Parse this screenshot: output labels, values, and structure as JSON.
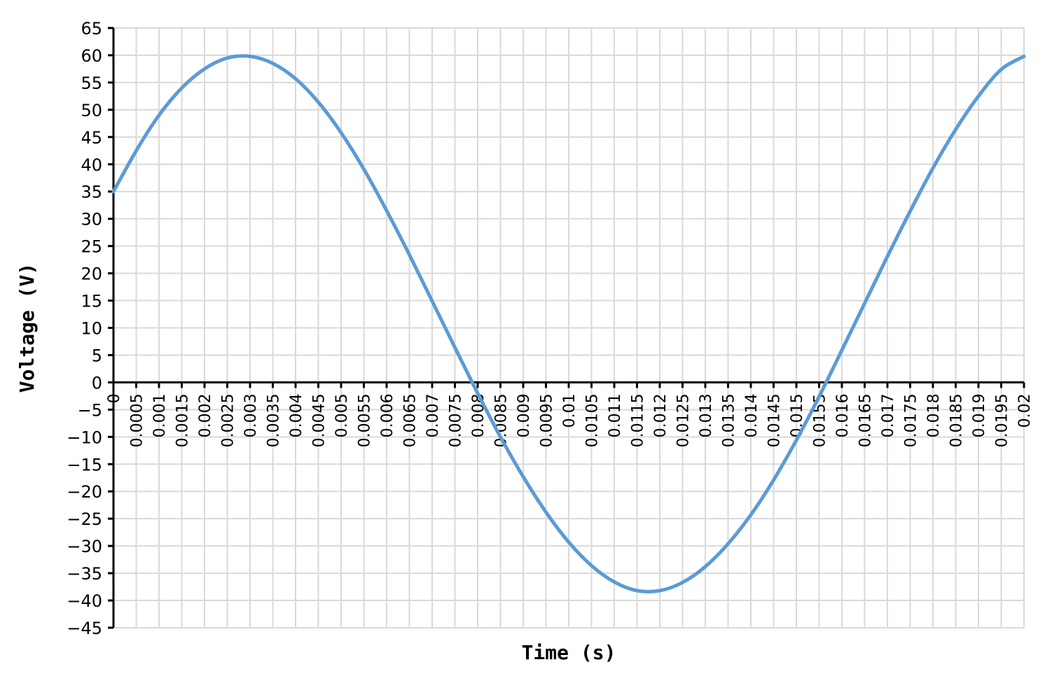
{
  "chart_data": {
    "type": "line",
    "xlabel": "Time (s)",
    "ylabel": "Voltage (V)",
    "xlim": [
      0,
      0.02
    ],
    "ylim": [
      -45,
      65
    ],
    "grid": true,
    "x_ticks": [
      "0",
      "0.0005",
      "0.001",
      "0.0015",
      "0.002",
      "0.0025",
      "0.003",
      "0.0035",
      "0.004",
      "0.0045",
      "0.005",
      "0.0055",
      "0.006",
      "0.0065",
      "0.007",
      "0.0075",
      "0.008",
      "0.0085",
      "0.009",
      "0.0095",
      "0.01",
      "0.0105",
      "0.011",
      "0.0115",
      "0.012",
      "0.0125",
      "0.013",
      "0.0135",
      "0.014",
      "0.0145",
      "0.015",
      "0.0155",
      "0.016",
      "0.0165",
      "0.017",
      "0.0175",
      "0.018",
      "0.0185",
      "0.019",
      "0.0195",
      "0.02"
    ],
    "y_ticks": [
      "65",
      "60",
      "55",
      "50",
      "45",
      "40",
      "35",
      "30",
      "25",
      "20",
      "15",
      "10",
      "5",
      "0",
      "−5",
      "−10",
      "−15",
      "−20",
      "−25",
      "−30",
      "−35",
      "−40",
      "−45"
    ],
    "series": [
      {
        "color": "#5b9bd5",
        "x": [
          0,
          0.0005,
          0.001,
          0.0015,
          0.002,
          0.0025,
          0.003,
          0.0035,
          0.004,
          0.0045,
          0.005,
          0.0055,
          0.006,
          0.0065,
          0.007,
          0.0075,
          0.008,
          0.0085,
          0.009,
          0.0095,
          0.01,
          0.0105,
          0.011,
          0.0115,
          0.012,
          0.0125,
          0.013,
          0.0135,
          0.014,
          0.0145,
          0.015,
          0.0155,
          0.016,
          0.0165,
          0.017,
          0.0175,
          0.018,
          0.0185,
          0.019,
          0.0195,
          0.02
        ],
        "y": [
          35,
          42.5,
          49,
          54,
          57.5,
          59.5,
          59.8,
          58.5,
          55.7,
          51.4,
          45.8,
          39.1,
          31.5,
          23.4,
          14.9,
          6.4,
          -2,
          -10,
          -17.3,
          -23.8,
          -29.3,
          -33.6,
          -36.6,
          -38.2,
          -38.2,
          -36.7,
          -33.8,
          -29.6,
          -24.3,
          -17.9,
          -10.6,
          -2.6,
          5.9,
          14.5,
          23.1,
          31.4,
          39.3,
          46.4,
          52.5,
          57.4,
          59.8
        ]
      }
    ]
  }
}
